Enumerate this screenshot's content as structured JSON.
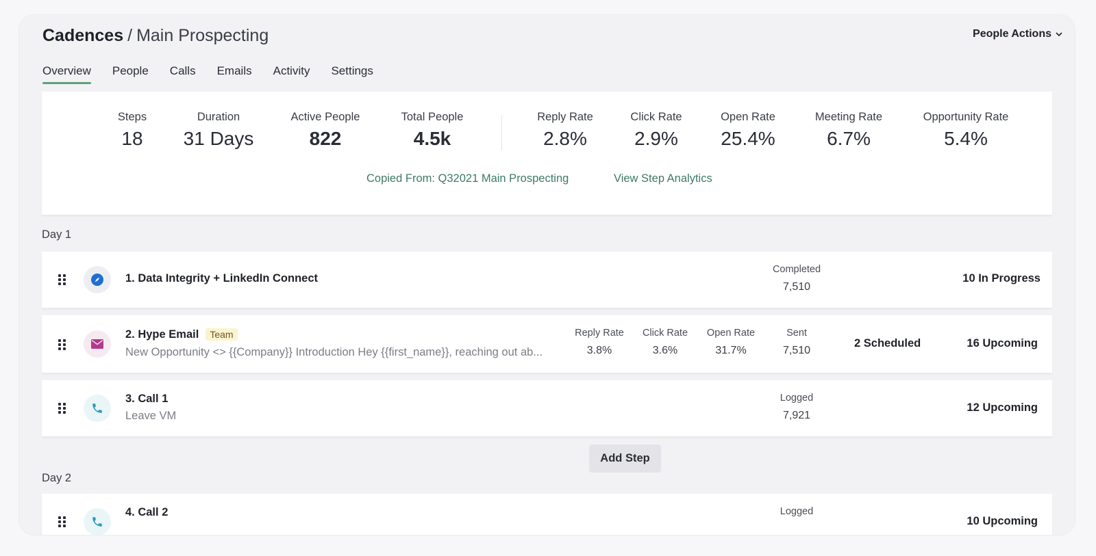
{
  "header": {
    "breadcrumb_root": "Cadences",
    "breadcrumb_sep": "/",
    "breadcrumb_current": "Main Prospecting",
    "people_actions": "People Actions"
  },
  "tabs": [
    {
      "label": "Overview",
      "active": true
    },
    {
      "label": "People"
    },
    {
      "label": "Calls"
    },
    {
      "label": "Emails"
    },
    {
      "label": "Activity"
    },
    {
      "label": "Settings"
    }
  ],
  "stats": {
    "steps": {
      "label": "Steps",
      "value": "18"
    },
    "duration": {
      "label": "Duration",
      "value": "31 Days"
    },
    "active_people": {
      "label": "Active People",
      "value": "822"
    },
    "total_people": {
      "label": "Total People",
      "value": "4.5k"
    },
    "reply_rate": {
      "label": "Reply Rate",
      "value": "2.8%"
    },
    "click_rate": {
      "label": "Click Rate",
      "value": "2.9%"
    },
    "open_rate": {
      "label": "Open Rate",
      "value": "25.4%"
    },
    "meeting_rate": {
      "label": "Meeting Rate",
      "value": "6.7%"
    },
    "opportunity_rate": {
      "label": "Opportunity Rate",
      "value": "5.4%"
    }
  },
  "links": {
    "copied_from": "Copied From: Q32021 Main Prospecting",
    "view_analytics": "View Step Analytics"
  },
  "days": [
    {
      "label": "Day 1"
    },
    {
      "label": "Day 2"
    }
  ],
  "steps": [
    {
      "title": "1. Data Integrity + LinkedIn Connect",
      "icon": "compass-icon",
      "metrics": [
        {
          "label": "Completed",
          "value": "7,510"
        }
      ],
      "status": "10 In Progress"
    },
    {
      "title": "2. Hype Email",
      "badge": "Team",
      "subtitle": "New Opportunity <> {{Company}} Introduction Hey {{first_name}}, reaching out ab...",
      "icon": "envelope-icon",
      "metrics": [
        {
          "label": "Reply Rate",
          "value": "3.8%"
        },
        {
          "label": "Click Rate",
          "value": "3.6%"
        },
        {
          "label": "Open Rate",
          "value": "31.7%"
        },
        {
          "label": "Sent",
          "value": "7,510"
        }
      ],
      "scheduled": "2 Scheduled",
      "status": "16 Upcoming"
    },
    {
      "title": "3. Call 1",
      "subtitle": "Leave VM",
      "icon": "phone-icon",
      "metrics": [
        {
          "label": "Logged",
          "value": "7,921"
        }
      ],
      "status": "12 Upcoming"
    },
    {
      "title": "4. Call 2",
      "icon": "phone-icon",
      "metrics": [
        {
          "label": "Logged",
          "value": ""
        }
      ],
      "status": "10 Upcoming"
    }
  ],
  "add_step_label": "Add Step",
  "colors": {
    "accent_green": "#5fa07a",
    "link_green": "#3e7a62",
    "badge_bg": "#fbf3d0",
    "email_icon": "#b23a8c",
    "compass_icon": "#1f6fd0",
    "phone_icon": "#2a9ab8"
  }
}
